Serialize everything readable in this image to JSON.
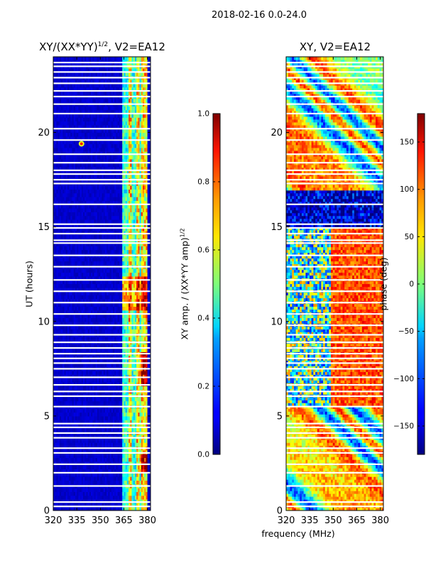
{
  "figure": {
    "suptitle": "2018-02-16 0.0-24.0",
    "xlabel": "frequency (MHz)"
  },
  "chart_data": [
    {
      "type": "heatmap",
      "title": "XY/(XX*YY)^{1/2}, V2=EA12",
      "title_text": "XY/(XX*YY)",
      "title_sup": "1/2",
      "title_suffix": ", V2=EA12",
      "xlabel": "frequency (MHz)",
      "ylabel": "UT (hours)",
      "xlim": [
        320,
        382
      ],
      "ylim": [
        0,
        24
      ],
      "x_ticks": [
        320,
        335,
        350,
        365,
        380
      ],
      "y_ticks": [
        0,
        5,
        10,
        15,
        20
      ],
      "colorbar": {
        "label": "XY amp. / (XX*YY amp)^{1/2}",
        "label_text": "XY amp. / (XX*YY amp)",
        "label_sup": "1/2",
        "range": [
          0.0,
          1.0
        ],
        "ticks": [
          0.0,
          0.2,
          0.4,
          0.6,
          0.8,
          1.0
        ],
        "tick_labels": [
          "0.0",
          "0.2",
          "0.4",
          "0.6",
          "0.8",
          "1.0"
        ],
        "colormap": "jet"
      },
      "description_values": {
        "background_level": 0.05,
        "band_region_mhz": [
          364,
          380
        ],
        "band_level": 0.45,
        "hot_channels_mhz": [
          369,
          374,
          377,
          379
        ],
        "hot_spot": {
          "freq_mhz": 338,
          "ut_hours": 19.4,
          "value": 0.6
        }
      }
    },
    {
      "type": "heatmap",
      "title": "XY, V2=EA12",
      "xlim": [
        320,
        382
      ],
      "ylim": [
        0,
        24
      ],
      "x_ticks": [
        320,
        335,
        350,
        365,
        380
      ],
      "y_ticks": [
        0,
        5,
        10,
        15,
        20
      ],
      "colorbar": {
        "label": "phase (deg)",
        "range": [
          -180,
          180
        ],
        "ticks": [
          -150,
          -100,
          -50,
          0,
          50,
          100,
          150
        ],
        "tick_labels": [
          "−150",
          "−100",
          "−50",
          "0",
          "50",
          "100",
          "150"
        ],
        "colormap": "jet"
      }
    }
  ],
  "flagged_ut_hours": [
    0.22,
    0.45,
    1.3,
    2.0,
    2.45,
    3.05,
    3.3,
    3.85,
    4.1,
    4.4,
    4.6,
    5.5,
    6.05,
    6.3,
    6.65,
    7.05,
    7.5,
    7.8,
    8.05,
    8.3,
    8.6,
    8.9,
    9.3,
    9.8,
    10.4,
    11.0,
    11.6,
    12.2,
    12.9,
    13.5,
    14.15,
    14.3,
    14.65,
    14.95,
    15.15,
    16.2,
    17.3,
    17.5,
    17.8,
    18.0,
    18.4,
    18.85,
    19.6,
    20.2,
    21.0,
    21.5,
    21.9,
    22.2,
    22.6,
    22.9,
    23.2,
    23.5,
    23.7
  ]
}
